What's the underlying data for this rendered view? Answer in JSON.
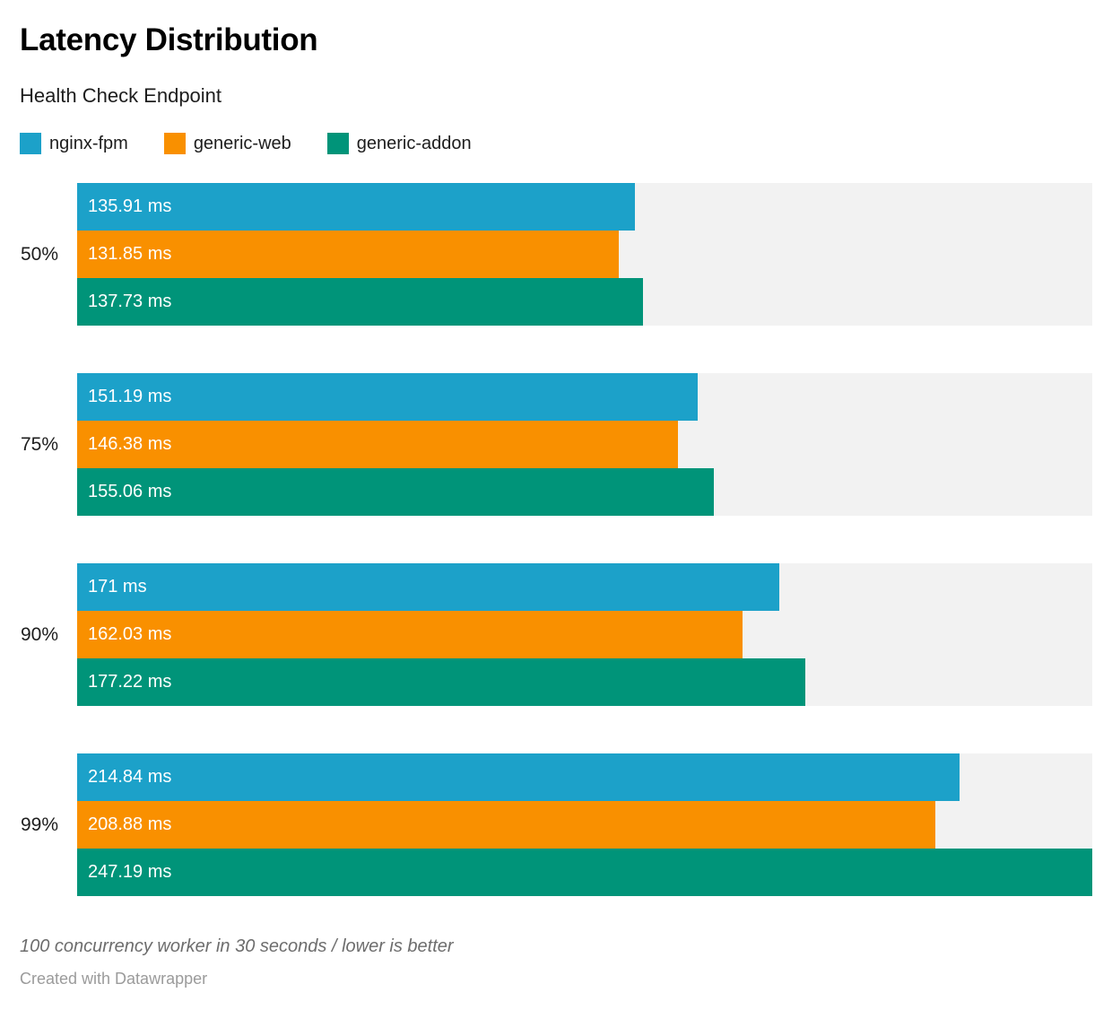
{
  "header": {
    "title": "Latency Distribution",
    "subtitle": "Health Check Endpoint"
  },
  "footer": {
    "note": "100 concurrency worker in 30 seconds / lower is better",
    "attribution": "Created with Datawrapper"
  },
  "colors": {
    "background": "#ffffff",
    "track": "#f2f2f2",
    "title_text": "#000000",
    "label_text": "#1d1d1d",
    "bar_label_text": "#ffffff",
    "note_text": "#6d6d6d",
    "attribution_text": "#9b9b9b"
  },
  "chart_data": {
    "type": "bar",
    "orientation": "horizontal",
    "title": "Latency Distribution",
    "subtitle": "Health Check Endpoint",
    "unit": "ms",
    "axis_max": 247.19,
    "grid": false,
    "legend_position": "top",
    "categories": [
      "50%",
      "75%",
      "90%",
      "99%"
    ],
    "series": [
      {
        "name": "nginx-fpm",
        "color": "#1CA1C9",
        "values": [
          135.91,
          151.19,
          171,
          214.84
        ],
        "labels": [
          "135.91 ms",
          "151.19 ms",
          "171 ms",
          "214.84 ms"
        ]
      },
      {
        "name": "generic-web",
        "color": "#F99000",
        "values": [
          131.85,
          146.38,
          162.03,
          208.88
        ],
        "labels": [
          "131.85 ms",
          "146.38 ms",
          "162.03 ms",
          "208.88 ms"
        ]
      },
      {
        "name": "generic-addon",
        "color": "#009479",
        "values": [
          137.73,
          155.06,
          177.22,
          247.19
        ],
        "labels": [
          "137.73 ms",
          "155.06 ms",
          "177.22 ms",
          "247.19 ms"
        ]
      }
    ]
  }
}
